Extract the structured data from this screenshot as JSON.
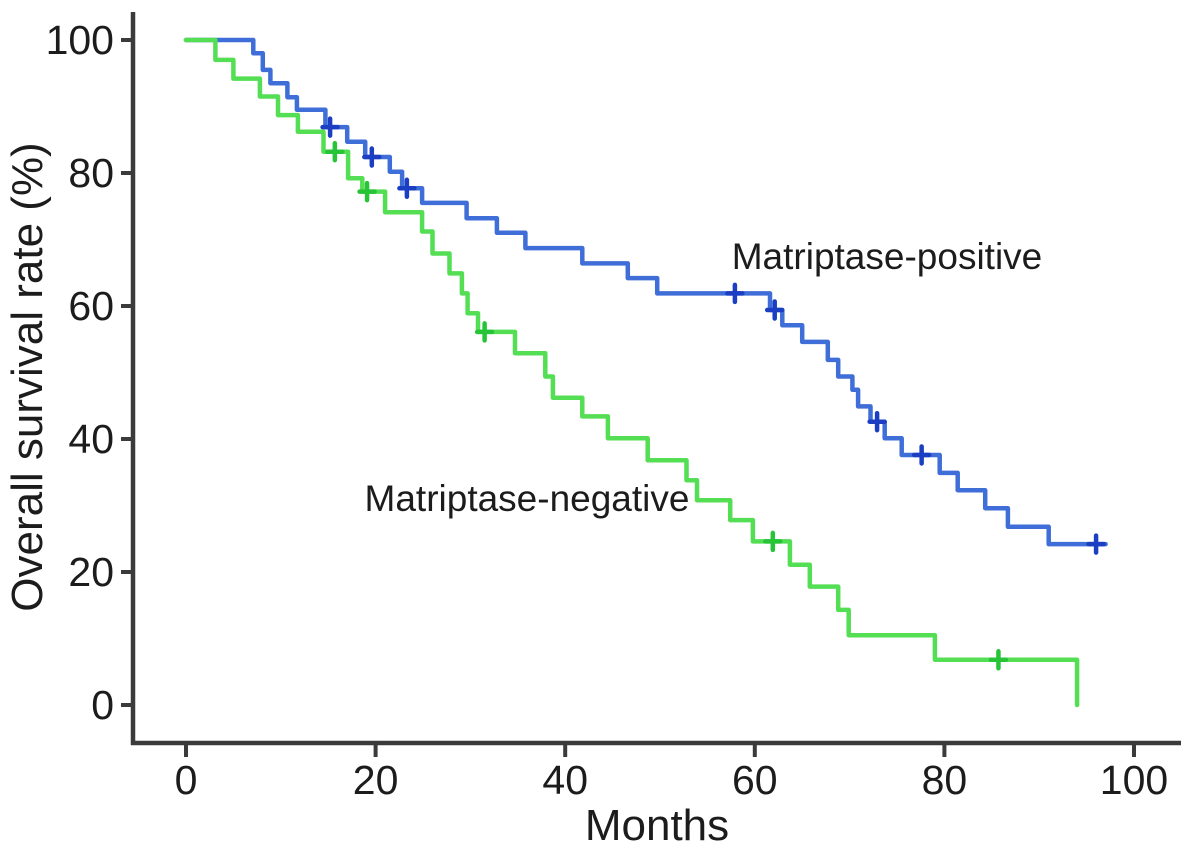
{
  "chart_data": {
    "type": "line",
    "subtype": "kaplan-meier-step",
    "title": "",
    "xlabel": "Months",
    "ylabel": "Overall survival rate (%)",
    "xlim": [
      0,
      100
    ],
    "ylim": [
      0,
      100
    ],
    "xticks": [
      0,
      20,
      40,
      60,
      80,
      100
    ],
    "yticks": [
      0,
      20,
      40,
      60,
      80,
      100
    ],
    "grid": false,
    "legend_position": "inline-annotations",
    "axis_color": "#3b3b3b",
    "series": [
      {
        "name": "Matriptase-positive",
        "color": "#3f6ed8",
        "censor_color": "#1b3ec2",
        "label_anchor": {
          "month": 74,
          "percent": 67.5
        },
        "end_month": 97.0,
        "points": [
          [
            0,
            100
          ],
          [
            7.1,
            98.0
          ],
          [
            8.1,
            95.5
          ],
          [
            8.9,
            93.5
          ],
          [
            10.7,
            91.4
          ],
          [
            11.7,
            89.5
          ],
          [
            14.7,
            86.9
          ],
          [
            17.0,
            84.7
          ],
          [
            18.9,
            82.4
          ],
          [
            21.5,
            80.2
          ],
          [
            22.8,
            77.7
          ],
          [
            24.9,
            75.5
          ],
          [
            29.6,
            73.2
          ],
          [
            32.8,
            71.0
          ],
          [
            35.8,
            68.7
          ],
          [
            41.8,
            66.4
          ],
          [
            46.6,
            64.2
          ],
          [
            49.7,
            61.9
          ],
          [
            61.6,
            59.4
          ],
          [
            62.9,
            57.1
          ],
          [
            65.0,
            54.6
          ],
          [
            67.7,
            51.9
          ],
          [
            68.8,
            49.4
          ],
          [
            70.3,
            47.4
          ],
          [
            70.9,
            44.9
          ],
          [
            72.2,
            42.6
          ],
          [
            73.7,
            40.1
          ],
          [
            75.5,
            37.6
          ],
          [
            79.5,
            34.9
          ],
          [
            81.4,
            32.3
          ],
          [
            84.3,
            29.6
          ],
          [
            86.7,
            26.8
          ],
          [
            91.0,
            24.2
          ]
        ],
        "censors": [
          [
            15.2,
            86.9
          ],
          [
            19.6,
            82.4
          ],
          [
            23.3,
            77.7
          ],
          [
            57.9,
            61.9
          ],
          [
            62.1,
            59.4
          ],
          [
            72.9,
            42.6
          ],
          [
            77.6,
            37.6
          ],
          [
            96.0,
            24.2
          ]
        ]
      },
      {
        "name": "Matriptase-negative",
        "color": "#54de54",
        "censor_color": "#27c437",
        "label_anchor": {
          "month": 36,
          "percent": 31.1
        },
        "end_month": 94.0,
        "points": [
          [
            0,
            100
          ],
          [
            3.1,
            97.0
          ],
          [
            5.0,
            94.2
          ],
          [
            7.8,
            91.5
          ],
          [
            9.7,
            88.7
          ],
          [
            11.8,
            86.2
          ],
          [
            14.5,
            83.2
          ],
          [
            17.1,
            79.2
          ],
          [
            18.6,
            77.2
          ],
          [
            21.0,
            74.1
          ],
          [
            24.9,
            71.2
          ],
          [
            26.0,
            67.9
          ],
          [
            27.8,
            64.9
          ],
          [
            29.1,
            61.9
          ],
          [
            29.7,
            58.9
          ],
          [
            30.8,
            56.1
          ],
          [
            34.7,
            52.9
          ],
          [
            37.9,
            49.4
          ],
          [
            38.7,
            46.2
          ],
          [
            41.8,
            43.4
          ],
          [
            44.5,
            40.1
          ],
          [
            48.7,
            36.8
          ],
          [
            52.8,
            33.8
          ],
          [
            53.9,
            30.8
          ],
          [
            57.4,
            27.8
          ],
          [
            59.8,
            24.6
          ],
          [
            63.7,
            21.1
          ],
          [
            65.8,
            17.8
          ],
          [
            68.8,
            14.3
          ],
          [
            69.9,
            10.5
          ],
          [
            79.0,
            6.8
          ],
          [
            94.0,
            0
          ]
        ],
        "censors": [
          [
            15.7,
            83.2
          ],
          [
            19.1,
            77.2
          ],
          [
            31.5,
            56.1
          ],
          [
            61.9,
            24.6
          ],
          [
            85.7,
            6.8
          ]
        ]
      }
    ]
  }
}
